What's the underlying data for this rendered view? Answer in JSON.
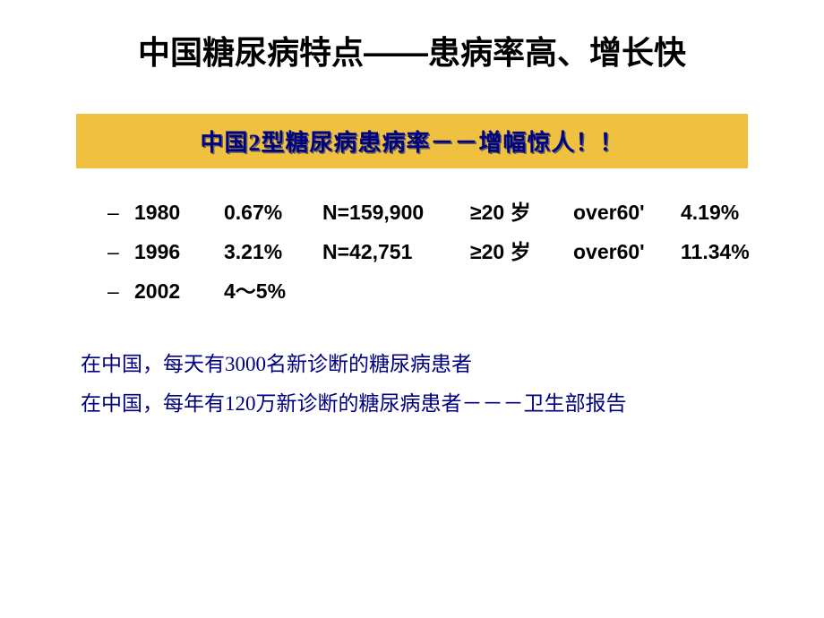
{
  "slide": {
    "title": "中国糖尿病特点——患病率高、增长快",
    "banner": "中国2型糖尿病患病率－－增幅惊人！！",
    "data_rows": [
      {
        "dash": "–",
        "year": "1980",
        "pct": "0.67%",
        "n": "N=159,900",
        "age": "≥20 岁",
        "over": "over60'",
        "oval": "4.19%"
      },
      {
        "dash": "–",
        "year": "1996",
        "pct": "3.21%",
        "n": "N=42,751",
        "age": "≥20 岁",
        "over": "over60'",
        "oval": "11.34%"
      },
      {
        "dash": "–",
        "year": "2002",
        "pct": "4～5%",
        "n": "",
        "age": "",
        "over": "",
        "oval": ""
      }
    ],
    "notes": [
      "在中国，每天有3000名新诊断的糖尿病患者",
      "在中国，每年有120万新诊断的糖尿病患者－－－卫生部报告"
    ],
    "colors": {
      "background": "#ffffff",
      "title_text": "#000000",
      "banner_bg": "#f0c040",
      "banner_text": "#000080",
      "data_text": "#000000",
      "note_text": "#000080"
    },
    "fonts": {
      "title_size": 36,
      "banner_size": 26,
      "data_size": 23,
      "note_size": 23
    }
  }
}
